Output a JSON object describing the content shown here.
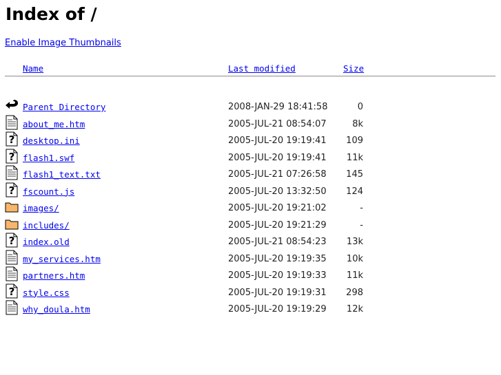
{
  "title": "Index of /",
  "thumbnails_link": "Enable Image Thumbnails",
  "columns": {
    "name": "Name",
    "modified": "Last modified",
    "size": "Size"
  },
  "entries": [
    {
      "icon": "back",
      "name": "Parent Directory",
      "modified": "2008-JAN-29 18:41:58",
      "size": "0"
    },
    {
      "icon": "text",
      "name": "about_me.htm",
      "modified": "2005-JUL-21 08:54:07",
      "size": "8k"
    },
    {
      "icon": "unknown",
      "name": "desktop.ini",
      "modified": "2005-JUL-20 19:19:41",
      "size": "109"
    },
    {
      "icon": "unknown",
      "name": "flash1.swf",
      "modified": "2005-JUL-20 19:19:41",
      "size": "11k"
    },
    {
      "icon": "text",
      "name": "flash1_text.txt",
      "modified": "2005-JUL-21 07:26:58",
      "size": "145"
    },
    {
      "icon": "unknown",
      "name": "fscount.js",
      "modified": "2005-JUL-20 13:32:50",
      "size": "124"
    },
    {
      "icon": "folder",
      "name": "images/",
      "modified": "2005-JUL-20 19:21:02",
      "size": "-"
    },
    {
      "icon": "folder",
      "name": "includes/",
      "modified": "2005-JUL-20 19:21:29",
      "size": "-"
    },
    {
      "icon": "unknown",
      "name": "index.old",
      "modified": "2005-JUL-21 08:54:23",
      "size": "13k"
    },
    {
      "icon": "text",
      "name": "my_services.htm",
      "modified": "2005-JUL-20 19:19:35",
      "size": "10k"
    },
    {
      "icon": "text",
      "name": "partners.htm",
      "modified": "2005-JUL-20 19:19:33",
      "size": "11k"
    },
    {
      "icon": "unknown",
      "name": "style.css",
      "modified": "2005-JUL-20 19:19:31",
      "size": "298"
    },
    {
      "icon": "text",
      "name": "why_doula.htm",
      "modified": "2005-JUL-20 19:19:29",
      "size": "12k"
    }
  ]
}
